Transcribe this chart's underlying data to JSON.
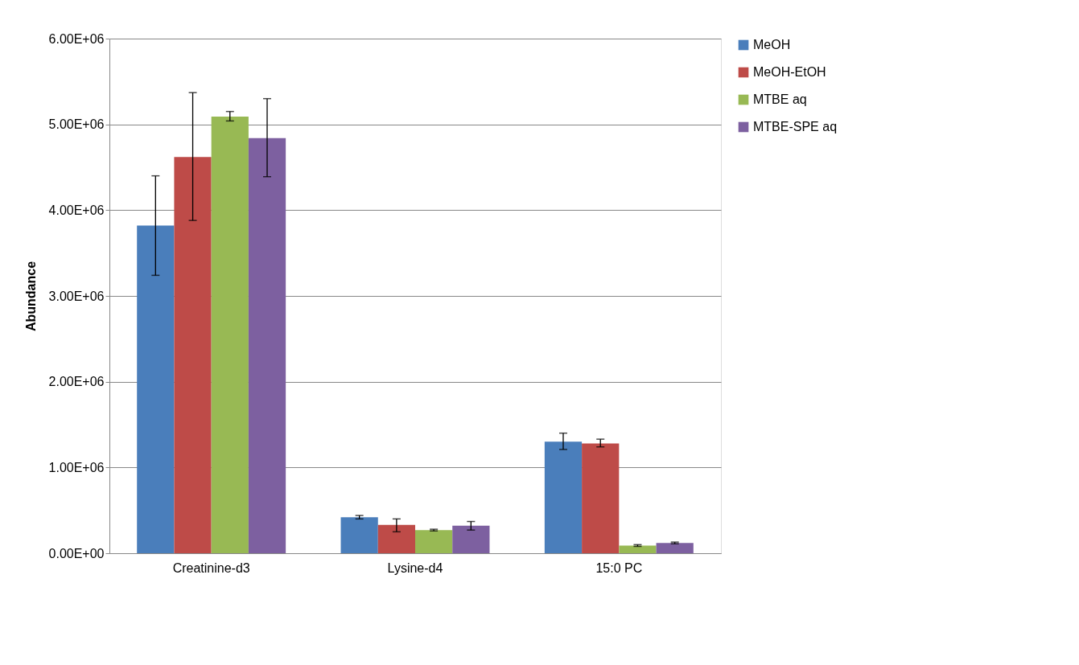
{
  "chart_data": {
    "type": "bar",
    "ylabel": "Abundance",
    "categories": [
      "Creatinine-d3",
      "Lysine-d4",
      "15:0 PC"
    ],
    "series": [
      {
        "name": "MeOH",
        "color": "#4a7ebb",
        "values": [
          3820000,
          420000,
          1300000
        ],
        "errors": [
          [
            3240000,
            4400000
          ],
          [
            400000,
            440000
          ],
          [
            1210000,
            1400000
          ]
        ]
      },
      {
        "name": "MeOH-EtOH",
        "color": "#be4b48",
        "values": [
          4620000,
          330000,
          1280000
        ],
        "errors": [
          [
            3880000,
            5370000
          ],
          [
            250000,
            400000
          ],
          [
            1240000,
            1330000
          ]
        ]
      },
      {
        "name": "MTBE aq",
        "color": "#98b954",
        "values": [
          5090000,
          270000,
          90000
        ],
        "errors": [
          [
            5040000,
            5150000
          ],
          [
            260000,
            280000
          ],
          [
            80000,
            100000
          ]
        ]
      },
      {
        "name": "MTBE-SPE aq",
        "color": "#7d60a0",
        "values": [
          4840000,
          320000,
          120000
        ],
        "errors": [
          [
            4390000,
            5300000
          ],
          [
            270000,
            370000
          ],
          [
            110000,
            130000
          ]
        ]
      }
    ],
    "ylim": [
      0,
      6000000
    ],
    "yticks": [
      {
        "value": 0,
        "label": "0.00E+00"
      },
      {
        "value": 1000000,
        "label": "1.00E+06"
      },
      {
        "value": 2000000,
        "label": "2.00E+06"
      },
      {
        "value": 3000000,
        "label": "3.00E+06"
      },
      {
        "value": 4000000,
        "label": "4.00E+06"
      },
      {
        "value": 5000000,
        "label": "5.00E+06"
      },
      {
        "value": 6000000,
        "label": "6.00E+06"
      }
    ],
    "grid": "y",
    "legend": "right"
  }
}
